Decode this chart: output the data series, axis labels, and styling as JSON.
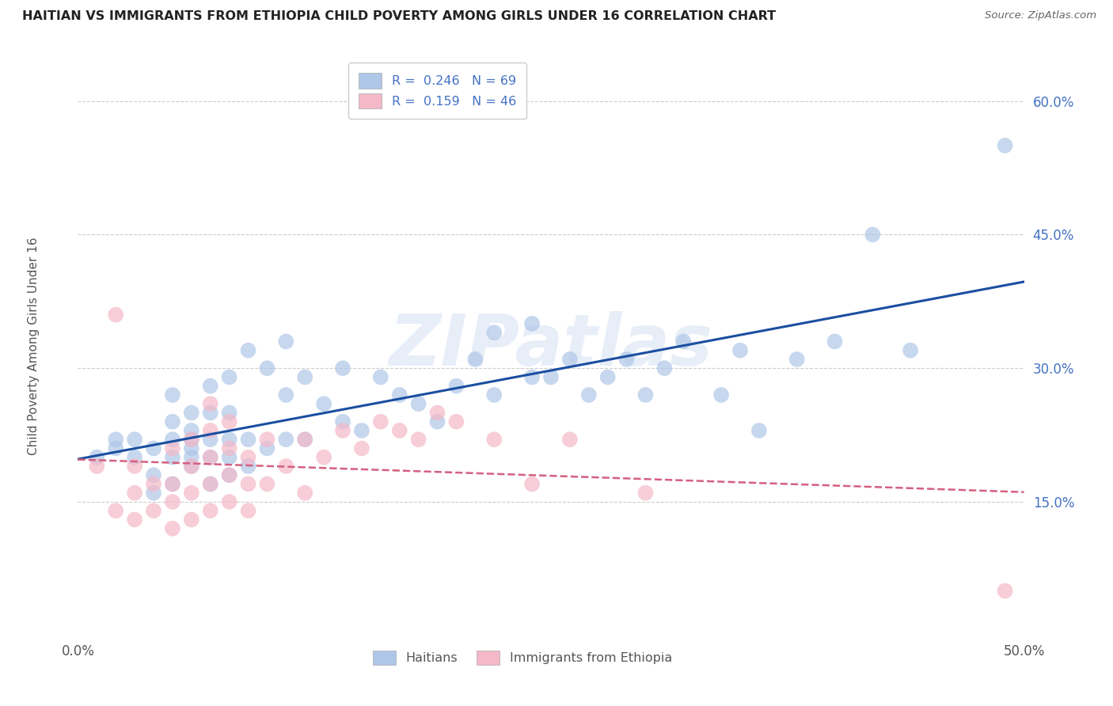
{
  "title": "HAITIAN VS IMMIGRANTS FROM ETHIOPIA CHILD POVERTY AMONG GIRLS UNDER 16 CORRELATION CHART",
  "source": "Source: ZipAtlas.com",
  "ylabel": "Child Poverty Among Girls Under 16",
  "xlim": [
    0.0,
    0.5
  ],
  "ylim": [
    0.0,
    0.65
  ],
  "xticks": [
    0.0,
    0.1,
    0.2,
    0.3,
    0.4,
    0.5
  ],
  "xtick_labels": [
    "0.0%",
    "",
    "",
    "",
    "",
    "50.0%"
  ],
  "yticks": [
    0.0,
    0.15,
    0.3,
    0.45,
    0.6
  ],
  "ytick_labels": [
    "",
    "15.0%",
    "30.0%",
    "45.0%",
    "60.0%"
  ],
  "haiti_R": 0.246,
  "haiti_N": 69,
  "ethiopia_R": 0.159,
  "ethiopia_N": 46,
  "haiti_color": "#aec6e8",
  "haiti_line_color": "#1a4fa0",
  "ethiopia_color": "#f4b8c8",
  "ethiopia_line_color": "#d46080",
  "background_color": "#ffffff",
  "grid_color": "#cccccc",
  "haiti_x": [
    0.01,
    0.02,
    0.02,
    0.03,
    0.03,
    0.04,
    0.04,
    0.04,
    0.05,
    0.05,
    0.05,
    0.05,
    0.05,
    0.06,
    0.06,
    0.06,
    0.06,
    0.06,
    0.06,
    0.07,
    0.07,
    0.07,
    0.07,
    0.07,
    0.08,
    0.08,
    0.08,
    0.08,
    0.08,
    0.09,
    0.09,
    0.09,
    0.1,
    0.1,
    0.11,
    0.11,
    0.11,
    0.12,
    0.12,
    0.13,
    0.14,
    0.14,
    0.15,
    0.16,
    0.17,
    0.18,
    0.19,
    0.2,
    0.21,
    0.22,
    0.22,
    0.24,
    0.24,
    0.25,
    0.26,
    0.27,
    0.28,
    0.29,
    0.3,
    0.31,
    0.32,
    0.34,
    0.35,
    0.36,
    0.38,
    0.4,
    0.42,
    0.44,
    0.49
  ],
  "haiti_y": [
    0.2,
    0.22,
    0.21,
    0.2,
    0.22,
    0.16,
    0.18,
    0.21,
    0.17,
    0.2,
    0.22,
    0.24,
    0.27,
    0.19,
    0.2,
    0.21,
    0.22,
    0.23,
    0.25,
    0.17,
    0.2,
    0.22,
    0.25,
    0.28,
    0.18,
    0.2,
    0.22,
    0.25,
    0.29,
    0.19,
    0.22,
    0.32,
    0.21,
    0.3,
    0.22,
    0.27,
    0.33,
    0.22,
    0.29,
    0.26,
    0.24,
    0.3,
    0.23,
    0.29,
    0.27,
    0.26,
    0.24,
    0.28,
    0.31,
    0.34,
    0.27,
    0.29,
    0.35,
    0.29,
    0.31,
    0.27,
    0.29,
    0.31,
    0.27,
    0.3,
    0.33,
    0.27,
    0.32,
    0.23,
    0.31,
    0.33,
    0.45,
    0.32,
    0.55
  ],
  "ethiopia_x": [
    0.01,
    0.02,
    0.02,
    0.03,
    0.03,
    0.03,
    0.04,
    0.04,
    0.05,
    0.05,
    0.05,
    0.05,
    0.06,
    0.06,
    0.06,
    0.06,
    0.07,
    0.07,
    0.07,
    0.07,
    0.07,
    0.08,
    0.08,
    0.08,
    0.08,
    0.09,
    0.09,
    0.09,
    0.1,
    0.1,
    0.11,
    0.12,
    0.12,
    0.13,
    0.14,
    0.15,
    0.16,
    0.17,
    0.18,
    0.19,
    0.2,
    0.22,
    0.24,
    0.26,
    0.3,
    0.49
  ],
  "ethiopia_y": [
    0.19,
    0.14,
    0.36,
    0.13,
    0.16,
    0.19,
    0.14,
    0.17,
    0.12,
    0.15,
    0.17,
    0.21,
    0.13,
    0.16,
    0.19,
    0.22,
    0.14,
    0.17,
    0.2,
    0.23,
    0.26,
    0.15,
    0.18,
    0.21,
    0.24,
    0.14,
    0.17,
    0.2,
    0.17,
    0.22,
    0.19,
    0.16,
    0.22,
    0.2,
    0.23,
    0.21,
    0.24,
    0.23,
    0.22,
    0.25,
    0.24,
    0.22,
    0.17,
    0.22,
    0.16,
    0.05
  ]
}
